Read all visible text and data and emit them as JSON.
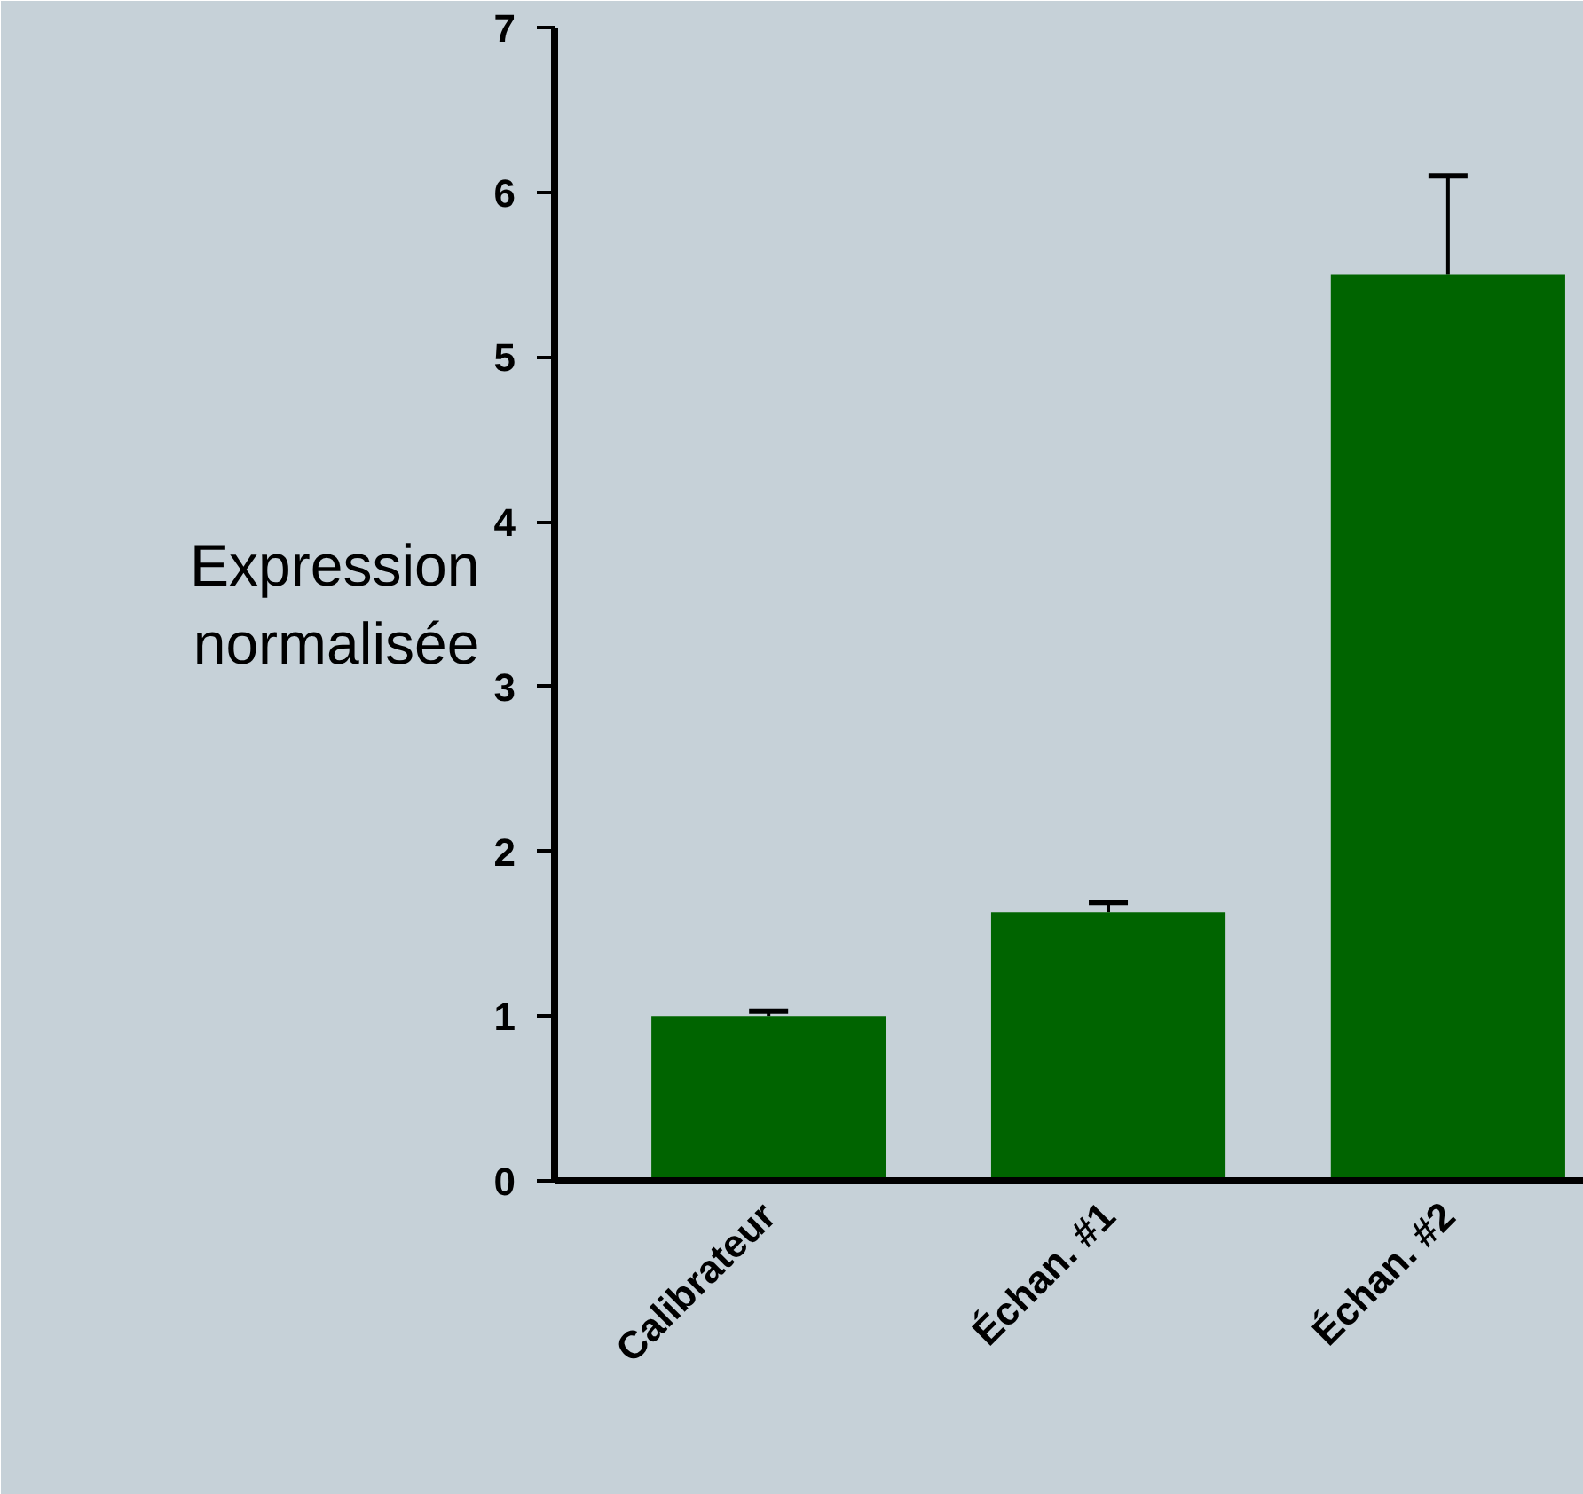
{
  "chart_data": {
    "type": "bar",
    "ylabel": "Expression normalisée",
    "categories": [
      "Calibrateur",
      "Échan. #1",
      "Échan. #2"
    ],
    "values": [
      1.0,
      1.63,
      5.5
    ],
    "errors": [
      [
        1.0,
        1.03
      ],
      [
        1.63,
        1.69
      ],
      [
        5.5,
        6.1
      ]
    ],
    "color": "#006400",
    "ylim": [
      0,
      7
    ],
    "yticks": [
      0,
      1,
      2,
      3,
      4,
      5,
      6,
      7
    ],
    "grid": false
  }
}
